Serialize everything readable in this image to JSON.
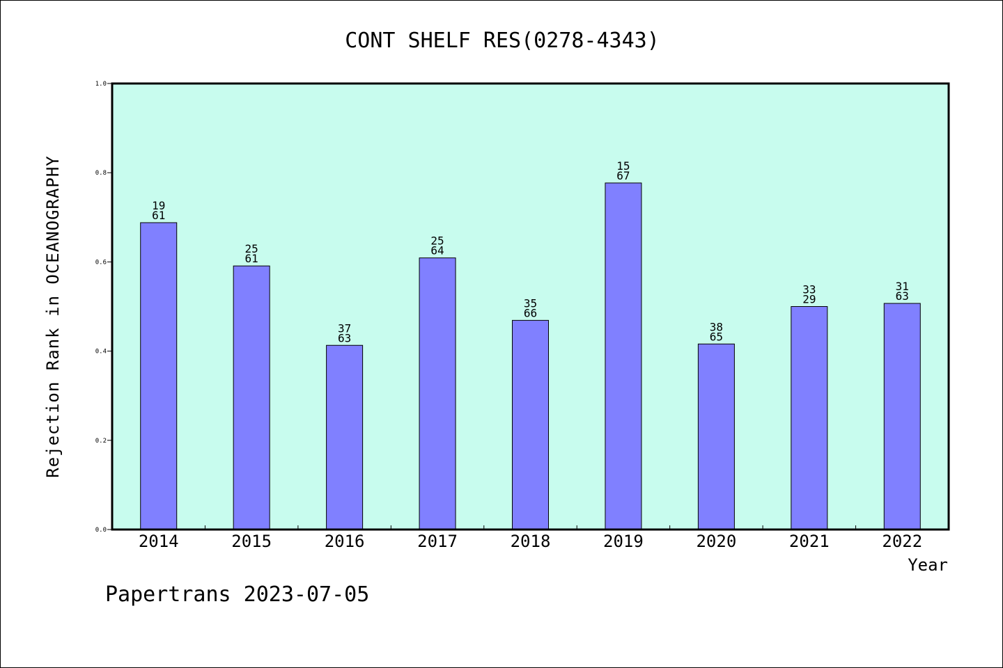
{
  "chart_data": {
    "type": "bar",
    "title": "CONT SHELF RES(0278-4343)",
    "xlabel": "Year",
    "ylabel": "Rejection Rank in OCEANOGRAPHY",
    "ylim": [
      0,
      1.0
    ],
    "yticks": [
      "0.0",
      "0.2",
      "0.4",
      "0.6",
      "0.8",
      "1.0"
    ],
    "categories": [
      "2014",
      "2015",
      "2016",
      "2017",
      "2018",
      "2019",
      "2020",
      "2021",
      "2022"
    ],
    "values": [
      0.688,
      0.591,
      0.413,
      0.609,
      0.469,
      0.777,
      0.416,
      0.5,
      0.507
    ],
    "labels_top": [
      "19",
      "25",
      "37",
      "25",
      "35",
      "15",
      "38",
      "33",
      "31"
    ],
    "labels_bottom": [
      "61",
      "61",
      "63",
      "64",
      "66",
      "67",
      "65",
      "29",
      "63"
    ],
    "grid": false,
    "legend": "none"
  },
  "footer": "Papertrans 2023-07-05",
  "colors": {
    "plot_background": "#c8fcee",
    "bar_fill": "#8080ff",
    "bar_stroke": "#000000"
  }
}
